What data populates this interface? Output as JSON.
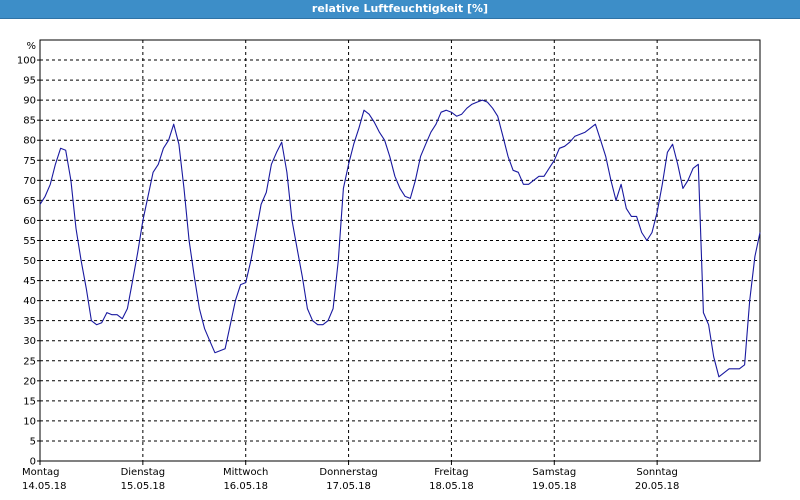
{
  "title": "relative Luftfeuchtigkeit [%]",
  "chart_data": {
    "type": "line",
    "title": "relative Luftfeuchtigkeit [%]",
    "unit_label": "%",
    "ylim": [
      0,
      105
    ],
    "yticks": [
      0,
      5,
      10,
      15,
      20,
      25,
      30,
      35,
      40,
      45,
      50,
      55,
      60,
      65,
      70,
      75,
      80,
      85,
      90,
      95,
      100
    ],
    "grid": true,
    "xlim_days": [
      0,
      7
    ],
    "x_ticks": [
      {
        "day": "Montag",
        "date": "14.05.18"
      },
      {
        "day": "Dienstag",
        "date": "15.05.18"
      },
      {
        "day": "Mittwoch",
        "date": "16.05.18"
      },
      {
        "day": "Donnerstag",
        "date": "17.05.18"
      },
      {
        "day": "Freitag",
        "date": "18.05.18"
      },
      {
        "day": "Samstag",
        "date": "19.05.18"
      },
      {
        "day": "Sonntag",
        "date": "20.05.18"
      }
    ],
    "series": [
      {
        "color": "#1a1aa0",
        "x": [
          0,
          0.05,
          0.1,
          0.15,
          0.2,
          0.25,
          0.3,
          0.35,
          0.4,
          0.45,
          0.5,
          0.55,
          0.6,
          0.65,
          0.7,
          0.75,
          0.8,
          0.85,
          0.9,
          0.95,
          1,
          1.05,
          1.1,
          1.15,
          1.2,
          1.25,
          1.3,
          1.35,
          1.4,
          1.45,
          1.5,
          1.55,
          1.6,
          1.65,
          1.7,
          1.75,
          1.8,
          1.85,
          1.9,
          1.95,
          2,
          2.05,
          2.1,
          2.15,
          2.2,
          2.25,
          2.3,
          2.35,
          2.4,
          2.45,
          2.5,
          2.55,
          2.6,
          2.65,
          2.7,
          2.75,
          2.8,
          2.85,
          2.9,
          2.95,
          3,
          3.05,
          3.1,
          3.15,
          3.2,
          3.25,
          3.3,
          3.35,
          3.4,
          3.45,
          3.5,
          3.55,
          3.6,
          3.65,
          3.7,
          3.75,
          3.8,
          3.85,
          3.9,
          3.95,
          4,
          4.05,
          4.1,
          4.15,
          4.2,
          4.25,
          4.3,
          4.35,
          4.4,
          4.45,
          4.5,
          4.55,
          4.6,
          4.65,
          4.7,
          4.75,
          4.8,
          4.85,
          4.9,
          4.95,
          5,
          5.05,
          5.1,
          5.15,
          5.2,
          5.25,
          5.3,
          5.35,
          5.4,
          5.45,
          5.5,
          5.55,
          5.6,
          5.65,
          5.7,
          5.75,
          5.8,
          5.85,
          5.9,
          5.95,
          6,
          6.05,
          6.1,
          6.15,
          6.2,
          6.25,
          6.3,
          6.35,
          6.4,
          6.45,
          6.5,
          6.55,
          6.6,
          6.65,
          6.7,
          6.75,
          6.8,
          6.85,
          6.9,
          6.95,
          7
        ],
        "y": [
          64,
          66,
          69,
          74,
          78,
          77.5,
          70,
          58,
          50,
          43,
          35,
          34,
          34.5,
          37,
          36.5,
          36.5,
          35.5,
          38,
          45,
          52,
          60,
          66,
          72,
          74,
          78,
          80,
          84,
          79,
          68,
          55,
          46,
          38,
          33,
          30,
          27,
          27.5,
          28,
          34,
          40,
          44,
          44.5,
          50,
          57,
          64,
          67,
          74,
          77,
          79.5,
          72,
          60,
          53,
          46,
          38,
          35,
          34,
          34,
          35,
          38,
          50,
          68,
          74,
          79,
          83,
          87.5,
          86.5,
          84.5,
          82,
          80,
          76,
          71,
          68,
          66,
          65.5,
          70,
          76,
          79,
          82,
          84,
          87,
          87.5,
          87,
          86,
          86.5,
          88,
          89,
          89.5,
          90,
          89.5,
          88,
          86,
          81,
          76,
          72.5,
          72,
          69,
          69,
          70,
          71,
          71,
          73,
          75,
          78,
          78.5,
          79.5,
          81,
          81.5,
          82,
          83,
          84,
          80,
          76,
          70,
          65,
          69,
          63,
          61,
          61,
          57,
          55,
          57,
          62,
          69,
          77,
          79,
          74,
          68,
          70,
          73,
          74,
          37,
          34,
          26,
          21,
          22,
          23,
          23,
          23,
          24,
          40,
          51,
          57
        ]
      }
    ]
  }
}
